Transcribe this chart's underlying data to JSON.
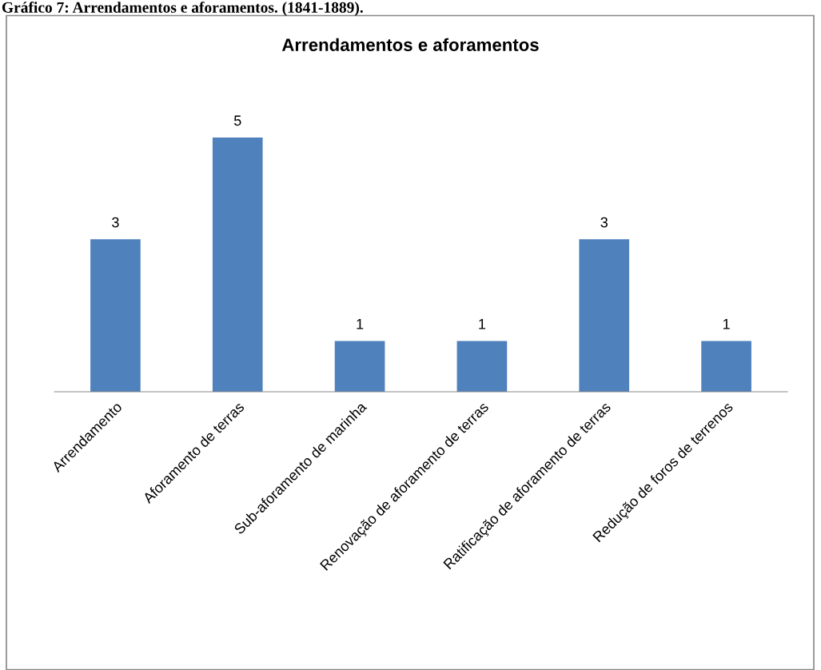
{
  "chart_data": {
    "type": "bar",
    "title": "Arrendamentos e aforamentos",
    "annotations": [
      "Gráfico 7: Arrendamentos e aforamentos. (1841-1889)."
    ],
    "categories": [
      "Arrendamento",
      "Aforamento de terras",
      "Sub-aforamento de marinha",
      "Renovação de aforamento de terras",
      "Ratificação de aforamento de terras",
      "Redução de foros de terrenos"
    ],
    "values": [
      3,
      5,
      1,
      1,
      3,
      1
    ],
    "color": "#4f81bd",
    "data_labels": true
  }
}
